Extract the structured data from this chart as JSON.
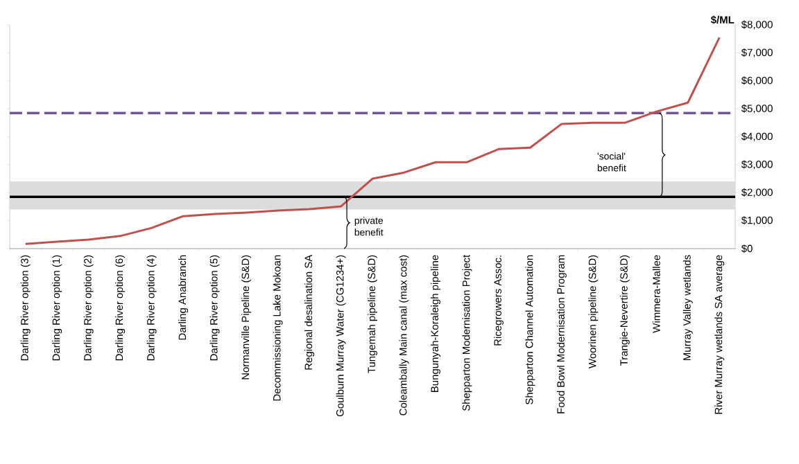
{
  "chart_data": {
    "type": "line",
    "ylabel": "$/ML",
    "categories": [
      "Darling River option (3)",
      "Darling River option (1)",
      "Darling River option (2)",
      "Darling River option (6)",
      "Darling River option (4)",
      "Darling Anabranch",
      "Darling River option (5)",
      "Normanville Pipeline (S&D)",
      "Decommissioning Lake Mokoan",
      "Regional desalination SA",
      "Goulburn Murray Water (CG1234+)",
      "Tungemah pipeline (S&D)",
      "Coleambally Main canal (max cost)",
      "Bungunyah-Koraleigh  pipeline",
      "Shepparton Modernisation Project",
      "Ricegrowers Assoc.",
      "Shepparton Channel Automation",
      "Food Bowl Modernisation Program",
      "Woorinen pipeline (S&D)",
      "Trangie-Nevertire (S&D)",
      "Wimmera-Mallee",
      "Murray Valley wetlands",
      "River Murray wetlands SA average"
    ],
    "series": [
      {
        "color": "#c0504d",
        "values": [
          170,
          250,
          320,
          450,
          740,
          1160,
          1240,
          1290,
          1360,
          1410,
          1510,
          2500,
          2720,
          3090,
          3090,
          3560,
          3610,
          4460,
          4500,
          4500,
          4900,
          5220,
          7550
        ]
      }
    ],
    "ylim": [
      0,
      8000
    ],
    "yticks": [
      {
        "value": 0,
        "label": "$0"
      },
      {
        "value": 1000,
        "label": "$1,000"
      },
      {
        "value": 2000,
        "label": "$2,000"
      },
      {
        "value": 3000,
        "label": "$3,000"
      },
      {
        "value": 4000,
        "label": "$4,000"
      },
      {
        "value": 5000,
        "label": "$5,000"
      },
      {
        "value": 6000,
        "label": "$6,000"
      },
      {
        "value": 7000,
        "label": "$7,000"
      },
      {
        "value": 8000,
        "label": "$8,000"
      }
    ],
    "ref_lines": [
      {
        "axis": "y",
        "value": 4850,
        "color": "#70559a",
        "line_style": "dashed"
      },
      {
        "axis": "y",
        "value": 1850,
        "color": "#000000",
        "line_style": "solid"
      }
    ],
    "bands": [
      {
        "axis": "y",
        "from": 1400,
        "to": 2400,
        "color": "#dcdcdc"
      }
    ],
    "annotations": [
      "'social' benefit",
      "private benefit"
    ],
    "marker": "none",
    "line_style": "solid",
    "grid": false
  }
}
